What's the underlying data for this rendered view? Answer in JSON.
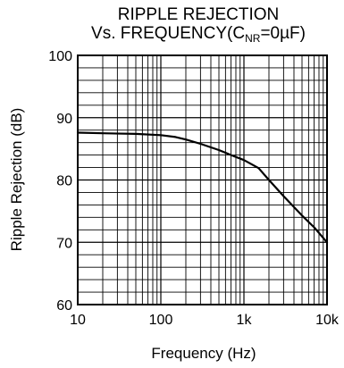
{
  "chart_data": {
    "type": "line",
    "title": "RIPPLE REJECTION",
    "subtitle": {
      "prefix": "Vs. FREQUENCY(C",
      "subscript": "NR",
      "suffix": "=0µF)"
    },
    "xlabel": "Frequency (Hz)",
    "ylabel": "Ripple Rejection (dB)",
    "xscale": "log",
    "xlim": [
      10,
      10000
    ],
    "ylim": [
      60,
      100
    ],
    "grid": true,
    "x_ticks": [
      {
        "value": 10,
        "label": "10"
      },
      {
        "value": 100,
        "label": "100"
      },
      {
        "value": 1000,
        "label": "1k"
      },
      {
        "value": 10000,
        "label": "10k"
      }
    ],
    "y_ticks": [
      {
        "value": 60,
        "label": "60"
      },
      {
        "value": 70,
        "label": "70"
      },
      {
        "value": 80,
        "label": "80"
      },
      {
        "value": 90,
        "label": "90"
      },
      {
        "value": 100,
        "label": "100"
      }
    ],
    "series": [
      {
        "x": [
          10,
          20,
          50,
          100,
          150,
          200,
          300,
          500,
          700,
          1000,
          1500,
          2000,
          3000,
          5000,
          7000,
          10000
        ],
        "y": [
          87.6,
          87.5,
          87.4,
          87.2,
          86.9,
          86.5,
          85.8,
          84.8,
          84.0,
          83.2,
          81.9,
          80.0,
          77.4,
          74.3,
          72.4,
          70.0
        ]
      }
    ]
  }
}
